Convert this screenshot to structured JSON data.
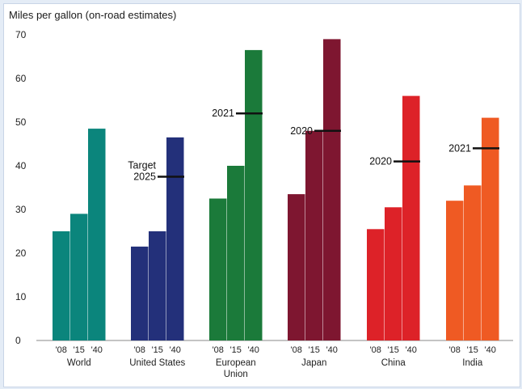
{
  "chart_data": {
    "type": "bar",
    "title": "",
    "ylabel": "Miles per gallon (on-road estimates)",
    "xlabel": "",
    "ylim": [
      0,
      70
    ],
    "yticks": [
      0,
      10,
      20,
      30,
      40,
      50,
      60,
      70
    ],
    "grid": false,
    "legend": "none",
    "year_labels": [
      "'08",
      "'15",
      "'40"
    ],
    "groups": [
      {
        "name": "World",
        "name_lines": [
          "World"
        ],
        "color": "#0b857c",
        "values": [
          25,
          29,
          48.5
        ],
        "target": null
      },
      {
        "name": "United States",
        "name_lines": [
          "United States"
        ],
        "color": "#23307a",
        "values": [
          21.5,
          25,
          46.5
        ],
        "target": {
          "label": "Target 2025",
          "label_lines": [
            "Target",
            "2025"
          ],
          "value": 37.5
        }
      },
      {
        "name": "European Union",
        "name_lines": [
          "European",
          "Union"
        ],
        "color": "#1b7a3a",
        "values": [
          32.5,
          40,
          66.5
        ],
        "target": {
          "label": "2021",
          "label_lines": [
            "2021"
          ],
          "value": 52
        }
      },
      {
        "name": "Japan",
        "name_lines": [
          "Japan"
        ],
        "color": "#7e1630",
        "values": [
          33.5,
          48,
          69
        ],
        "target": {
          "label": "2020",
          "label_lines": [
            "2020"
          ],
          "value": 48
        }
      },
      {
        "name": "China",
        "name_lines": [
          "China"
        ],
        "color": "#dd2228",
        "values": [
          25.5,
          30.5,
          56
        ],
        "target": {
          "label": "2020",
          "label_lines": [
            "2020"
          ],
          "value": 41
        }
      },
      {
        "name": "India",
        "name_lines": [
          "India"
        ],
        "color": "#ef5a23",
        "values": [
          32,
          35.5,
          51
        ],
        "target": {
          "label": "2021",
          "label_lines": [
            "2021"
          ],
          "value": 44
        }
      }
    ]
  }
}
